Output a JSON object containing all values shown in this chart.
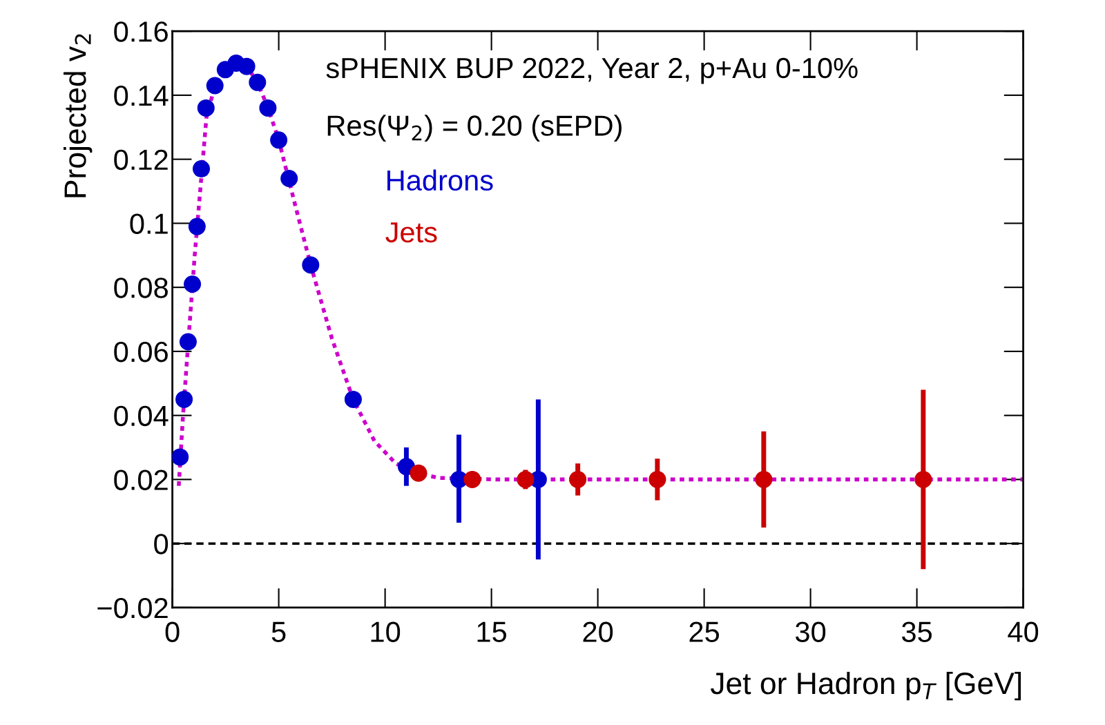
{
  "chart_data": {
    "type": "scatter",
    "xlabel": "Jet or Hadron p$_{T}$ [GeV]",
    "ylabel": "Projected v$_{2}$",
    "annotations": [
      "sPHENIX BUP 2022, Year 2, p+Au 0-10%",
      "Res(Ψ$_{2}$) = 0.20 (sEPD)"
    ],
    "xlim": [
      0,
      40
    ],
    "xticks": [
      0,
      5,
      10,
      15,
      20,
      25,
      30,
      35,
      40
    ],
    "ylim": [
      -0.02,
      0.16
    ],
    "yticks": [
      {
        "value": -0.02,
        "label": "−0.02"
      },
      0,
      0.02,
      0.04,
      0.06,
      0.08,
      0.1,
      0.12,
      0.14,
      0.16
    ],
    "grid": false,
    "marker": "circle",
    "ref_lines": [
      {
        "axis": "y",
        "value": 0,
        "color": "#000000",
        "line_style": "dashed"
      }
    ],
    "series": [
      {
        "type": "line",
        "color": "#cc00cc",
        "line_style": "dotted",
        "marker": "none",
        "x": [
          0.3,
          0.5,
          0.65,
          1.05,
          1.6,
          2,
          2.5,
          3,
          3.5,
          4,
          4.5,
          5,
          5.8,
          6.5,
          7.5,
          8.5,
          9.5,
          10.5,
          11.5,
          12.5,
          15.2,
          40
        ],
        "values": [
          0.018,
          0.04,
          0.054,
          0.09,
          0.133,
          0.143,
          0.148,
          0.15,
          0.149,
          0.144,
          0.136,
          0.126,
          0.105,
          0.087,
          0.064,
          0.045,
          0.032,
          0.025,
          0.022,
          0.0205,
          0.02,
          0.02
        ]
      },
      {
        "name": "Hadrons",
        "color": "#0000cc",
        "x": [
          0.36,
          0.55,
          0.74,
          0.94,
          1.16,
          1.36,
          1.58,
          2.0,
          2.49,
          3.0,
          3.49,
          4.0,
          4.49,
          5.0,
          5.49,
          6.5,
          8.5,
          11.0,
          13.47,
          17.2
        ],
        "values": [
          0.027,
          0.045,
          0.063,
          0.081,
          0.099,
          0.117,
          0.136,
          0.143,
          0.148,
          0.15,
          0.149,
          0.144,
          0.136,
          0.126,
          0.114,
          0.087,
          0.045,
          0.024,
          0.02,
          0.02
        ],
        "errors": [
          null,
          null,
          null,
          null,
          null,
          null,
          null,
          null,
          null,
          null,
          null,
          null,
          null,
          null,
          null,
          null,
          null,
          [
            0.018,
            0.03
          ],
          [
            0.0065,
            0.034
          ],
          [
            -0.005,
            0.045
          ]
        ]
      },
      {
        "name": "Jets",
        "color": "#cc0000",
        "x": [
          11.57,
          14.1,
          16.6,
          19.06,
          22.8,
          27.8,
          35.3
        ],
        "values": [
          0.022,
          0.02,
          0.02,
          0.02,
          0.02,
          0.02,
          0.02
        ],
        "errors": [
          null,
          null,
          [
            0.017,
            0.023
          ],
          [
            0.015,
            0.025
          ],
          [
            0.0135,
            0.0265
          ],
          [
            0.005,
            0.035
          ],
          [
            -0.008,
            0.048
          ]
        ]
      }
    ]
  }
}
